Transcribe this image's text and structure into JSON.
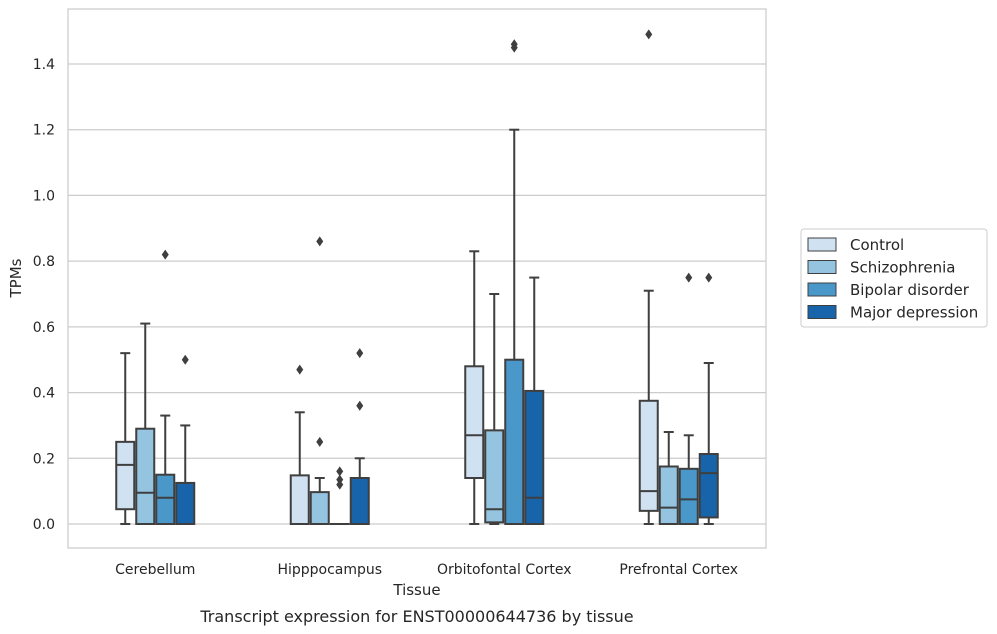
{
  "chart_data": {
    "type": "box",
    "caption": "Transcript expression for ENST00000644736 by tissue",
    "xlabel": "Tissue",
    "ylabel": "TPMs",
    "ylim": [
      -0.07,
      1.56
    ],
    "yticks": [
      0.0,
      0.2,
      0.4,
      0.6,
      0.8,
      1.0,
      1.2,
      1.4
    ],
    "ytick_labels": [
      "0.0",
      "0.2",
      "0.4",
      "0.6",
      "0.8",
      "1.0",
      "1.2",
      "1.4"
    ],
    "grid": "horizontal",
    "legend_position": "right",
    "categories": [
      "Cerebellum",
      "Hipppocampus",
      "Orbitofontal Cortex",
      "Prefrontal Cortex"
    ],
    "series": [
      {
        "name": "Control",
        "color": "#d0e1f2",
        "boxes": [
          {
            "whislo": 0.0,
            "q1": 0.045,
            "med": 0.18,
            "q3": 0.25,
            "whishi": 0.52,
            "fliers": []
          },
          {
            "whislo": 0.0,
            "q1": 0.0,
            "med": 0.0,
            "q3": 0.148,
            "whishi": 0.34,
            "fliers": [
              0.47
            ]
          },
          {
            "whislo": 0.0,
            "q1": 0.14,
            "med": 0.27,
            "q3": 0.48,
            "whishi": 0.83,
            "fliers": []
          },
          {
            "whislo": 0.0,
            "q1": 0.04,
            "med": 0.1,
            "q3": 0.375,
            "whishi": 0.71,
            "fliers": [
              1.49
            ]
          }
        ]
      },
      {
        "name": "Schizophrenia",
        "color": "#94c4df",
        "boxes": [
          {
            "whislo": 0.0,
            "q1": 0.0,
            "med": 0.095,
            "q3": 0.29,
            "whishi": 0.61,
            "fliers": []
          },
          {
            "whislo": 0.0,
            "q1": 0.0,
            "med": 0.0,
            "q3": 0.097,
            "whishi": 0.14,
            "fliers": [
              0.25,
              0.86
            ]
          },
          {
            "whislo": 0.0,
            "q1": 0.005,
            "med": 0.045,
            "q3": 0.285,
            "whishi": 0.7,
            "fliers": []
          },
          {
            "whislo": 0.0,
            "q1": 0.0,
            "med": 0.05,
            "q3": 0.175,
            "whishi": 0.28,
            "fliers": []
          }
        ]
      },
      {
        "name": "Bipolar disorder",
        "color": "#4a98c9",
        "boxes": [
          {
            "whislo": 0.0,
            "q1": 0.0,
            "med": 0.08,
            "q3": 0.15,
            "whishi": 0.33,
            "fliers": [
              0.82
            ]
          },
          {
            "whislo": 0.0,
            "q1": 0.0,
            "med": 0.0,
            "q3": 0.0,
            "whishi": 0.0,
            "fliers": [
              0.12,
              0.135,
              0.16
            ]
          },
          {
            "whislo": 0.0,
            "q1": 0.0,
            "med": 0.0,
            "q3": 0.5,
            "whishi": 1.2,
            "fliers": [
              1.45,
              1.46
            ]
          },
          {
            "whislo": 0.0,
            "q1": 0.0,
            "med": 0.075,
            "q3": 0.168,
            "whishi": 0.27,
            "fliers": [
              0.75
            ]
          }
        ]
      },
      {
        "name": "Major depression",
        "color": "#1764ab",
        "boxes": [
          {
            "whislo": 0.0,
            "q1": 0.0,
            "med": 0.0,
            "q3": 0.125,
            "whishi": 0.3,
            "fliers": [
              0.5
            ]
          },
          {
            "whislo": 0.0,
            "q1": 0.0,
            "med": 0.0,
            "q3": 0.14,
            "whishi": 0.2,
            "fliers": [
              0.36,
              0.52
            ]
          },
          {
            "whislo": 0.0,
            "q1": 0.0,
            "med": 0.08,
            "q3": 0.405,
            "whishi": 0.75,
            "fliers": []
          },
          {
            "whislo": 0.0,
            "q1": 0.02,
            "med": 0.155,
            "q3": 0.213,
            "whishi": 0.49,
            "fliers": [
              0.75
            ]
          }
        ]
      }
    ]
  }
}
